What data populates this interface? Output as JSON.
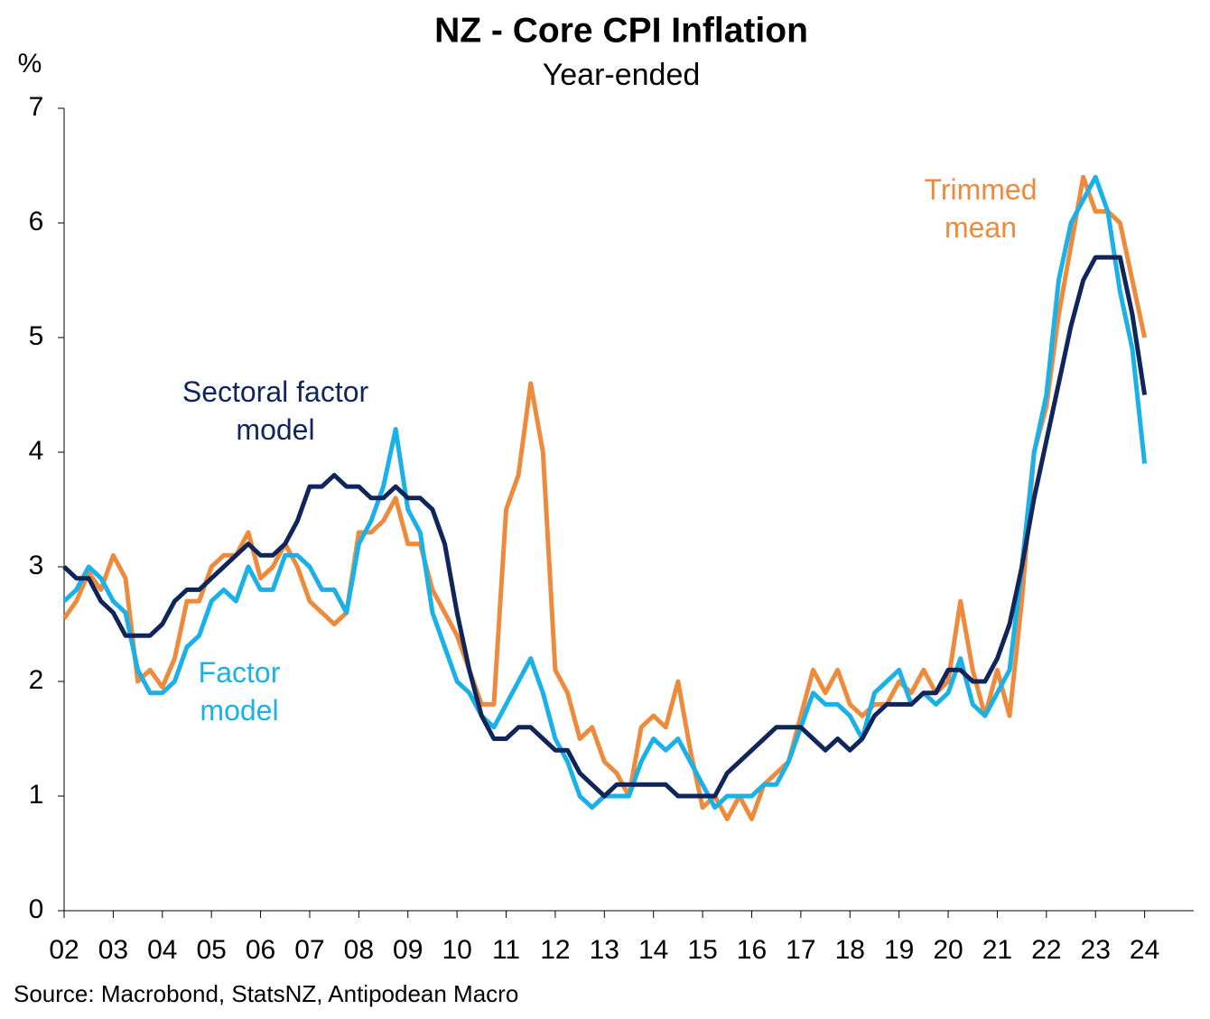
{
  "chart_data": {
    "type": "line",
    "title": "NZ - Core CPI Inflation",
    "subtitle": "Year-ended",
    "y_label": "%",
    "source": "Source: Macrobond, StatsNZ, Antipodean Macro",
    "x": [
      2002,
      2002.25,
      2002.5,
      2002.75,
      2003,
      2003.25,
      2003.5,
      2003.75,
      2004,
      2004.25,
      2004.5,
      2004.75,
      2005,
      2005.25,
      2005.5,
      2005.75,
      2006,
      2006.25,
      2006.5,
      2006.75,
      2007,
      2007.25,
      2007.5,
      2007.75,
      2008,
      2008.25,
      2008.5,
      2008.75,
      2009,
      2009.25,
      2009.5,
      2009.75,
      2010,
      2010.25,
      2010.5,
      2010.75,
      2011,
      2011.25,
      2011.5,
      2011.75,
      2012,
      2012.25,
      2012.5,
      2012.75,
      2013,
      2013.25,
      2013.5,
      2013.75,
      2014,
      2014.25,
      2014.5,
      2014.75,
      2015,
      2015.25,
      2015.5,
      2015.75,
      2016,
      2016.25,
      2016.5,
      2016.75,
      2017,
      2017.25,
      2017.5,
      2017.75,
      2018,
      2018.25,
      2018.5,
      2018.75,
      2019,
      2019.25,
      2019.5,
      2019.75,
      2020,
      2020.25,
      2020.5,
      2020.75,
      2021,
      2021.25,
      2021.5,
      2021.75,
      2022,
      2022.25,
      2022.5,
      2022.75,
      2023,
      2023.25,
      2023.5,
      2023.75,
      2024
    ],
    "series": [
      {
        "name": "Trimmed mean",
        "color": "#ee8a3c",
        "values": [
          2.55,
          2.7,
          2.95,
          2.8,
          3.1,
          2.9,
          2.0,
          2.1,
          1.95,
          2.2,
          2.7,
          2.7,
          3.0,
          3.1,
          3.1,
          3.3,
          2.9,
          3.0,
          3.2,
          3.0,
          2.7,
          2.6,
          2.5,
          2.6,
          3.3,
          3.3,
          3.4,
          3.6,
          3.2,
          3.2,
          2.8,
          2.6,
          2.4,
          2.1,
          1.8,
          1.8,
          3.5,
          3.8,
          4.6,
          4.0,
          2.1,
          1.9,
          1.5,
          1.6,
          1.3,
          1.2,
          1.0,
          1.6,
          1.7,
          1.6,
          2.0,
          1.4,
          0.9,
          1.0,
          0.8,
          1.0,
          0.8,
          1.1,
          1.2,
          1.3,
          1.7,
          2.1,
          1.9,
          2.1,
          1.8,
          1.7,
          1.8,
          1.8,
          2.0,
          1.9,
          2.1,
          1.9,
          2.0,
          2.7,
          2.1,
          1.7,
          2.1,
          1.7,
          2.7,
          4.0,
          4.4,
          5.2,
          5.8,
          6.4,
          6.1,
          6.1,
          6.0,
          5.5,
          5.0
        ]
      },
      {
        "name": "Factor model",
        "color": "#1ab0e8",
        "values": [
          2.7,
          2.8,
          3.0,
          2.9,
          2.7,
          2.6,
          2.1,
          1.9,
          1.9,
          2.0,
          2.3,
          2.4,
          2.7,
          2.8,
          2.7,
          3.0,
          2.8,
          2.8,
          3.1,
          3.1,
          3.0,
          2.8,
          2.8,
          2.6,
          3.2,
          3.4,
          3.7,
          4.2,
          3.5,
          3.3,
          2.6,
          2.3,
          2.0,
          1.9,
          1.7,
          1.6,
          1.8,
          2.0,
          2.2,
          1.9,
          1.5,
          1.3,
          1.0,
          0.9,
          1.0,
          1.0,
          1.0,
          1.3,
          1.5,
          1.4,
          1.5,
          1.3,
          1.1,
          0.9,
          1.0,
          1.0,
          1.0,
          1.1,
          1.1,
          1.3,
          1.6,
          1.9,
          1.8,
          1.8,
          1.7,
          1.5,
          1.9,
          2.0,
          2.1,
          1.8,
          1.9,
          1.8,
          1.9,
          2.2,
          1.8,
          1.7,
          1.9,
          2.1,
          3.0,
          4.0,
          4.5,
          5.5,
          6.0,
          6.2,
          6.4,
          6.1,
          5.4,
          4.9,
          3.9
        ]
      },
      {
        "name": "Sectoral factor model",
        "color": "#10265a",
        "values": [
          3.0,
          2.9,
          2.9,
          2.7,
          2.6,
          2.4,
          2.4,
          2.4,
          2.5,
          2.7,
          2.8,
          2.8,
          2.9,
          3.0,
          3.1,
          3.2,
          3.1,
          3.1,
          3.2,
          3.4,
          3.7,
          3.7,
          3.8,
          3.7,
          3.7,
          3.6,
          3.6,
          3.7,
          3.6,
          3.6,
          3.5,
          3.2,
          2.6,
          2.1,
          1.7,
          1.5,
          1.5,
          1.6,
          1.6,
          1.5,
          1.4,
          1.4,
          1.2,
          1.1,
          1.0,
          1.1,
          1.1,
          1.1,
          1.1,
          1.1,
          1.0,
          1.0,
          1.0,
          1.0,
          1.2,
          1.3,
          1.4,
          1.5,
          1.6,
          1.6,
          1.6,
          1.5,
          1.4,
          1.5,
          1.4,
          1.5,
          1.7,
          1.8,
          1.8,
          1.8,
          1.9,
          1.9,
          2.1,
          2.1,
          2.0,
          2.0,
          2.2,
          2.5,
          3.0,
          3.6,
          4.1,
          4.6,
          5.1,
          5.5,
          5.7,
          5.7,
          5.7,
          5.2,
          4.5
        ]
      }
    ],
    "xlim": [
      2002,
      2025
    ],
    "xticks": [
      {
        "value": 2002,
        "label": "02"
      },
      {
        "value": 2003,
        "label": "03"
      },
      {
        "value": 2004,
        "label": "04"
      },
      {
        "value": 2005,
        "label": "05"
      },
      {
        "value": 2006,
        "label": "06"
      },
      {
        "value": 2007,
        "label": "07"
      },
      {
        "value": 2008,
        "label": "08"
      },
      {
        "value": 2009,
        "label": "09"
      },
      {
        "value": 2010,
        "label": "10"
      },
      {
        "value": 2011,
        "label": "11"
      },
      {
        "value": 2012,
        "label": "12"
      },
      {
        "value": 2013,
        "label": "13"
      },
      {
        "value": 2014,
        "label": "14"
      },
      {
        "value": 2015,
        "label": "15"
      },
      {
        "value": 2016,
        "label": "16"
      },
      {
        "value": 2017,
        "label": "17"
      },
      {
        "value": 2018,
        "label": "18"
      },
      {
        "value": 2019,
        "label": "19"
      },
      {
        "value": 2020,
        "label": "20"
      },
      {
        "value": 2021,
        "label": "21"
      },
      {
        "value": 2022,
        "label": "22"
      },
      {
        "value": 2023,
        "label": "23"
      },
      {
        "value": 2024,
        "label": "24"
      }
    ],
    "ylim": [
      0,
      7
    ],
    "yticks": [
      0,
      1,
      2,
      3,
      4,
      5,
      6,
      7
    ],
    "grid": false
  }
}
